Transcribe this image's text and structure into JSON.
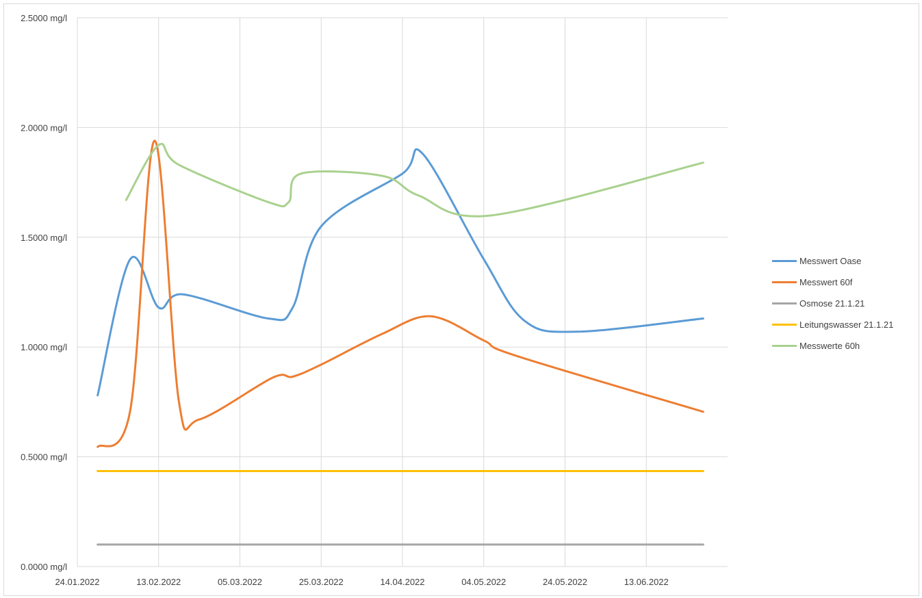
{
  "chart_data": {
    "type": "line",
    "title": "",
    "xlabel": "",
    "ylabel": "",
    "ylim": [
      0,
      2.5
    ],
    "y_ticks": [
      "0.0000 mg/l",
      "0.5000 mg/l",
      "1.0000 mg/l",
      "1.5000 mg/l",
      "2.0000 mg/l",
      "2.5000 mg/l"
    ],
    "y_tick_values": [
      0,
      0.5,
      1.0,
      1.5,
      2.0,
      2.5
    ],
    "xlim": [
      "2022-01-24",
      "2022-07-03"
    ],
    "x_ticks": [
      "24.01.2022",
      "13.02.2022",
      "05.03.2022",
      "25.03.2022",
      "14.04.2022",
      "04.05.2022",
      "24.05.2022",
      "13.06.2022"
    ],
    "x_tick_dates": [
      "2022-01-24",
      "2022-02-13",
      "2022-03-05",
      "2022-03-25",
      "2022-04-14",
      "2022-05-04",
      "2022-05-24",
      "2022-06-13"
    ],
    "grid": true,
    "legend_position": "right",
    "series": [
      {
        "name": "Messwert Oase",
        "color": "#5b9bd5",
        "points": [
          [
            "2022-01-29",
            0.78
          ],
          [
            "2022-02-06",
            1.4
          ],
          [
            "2022-02-13",
            1.18
          ],
          [
            "2022-02-19",
            1.24
          ],
          [
            "2022-03-12",
            1.13
          ],
          [
            "2022-03-18",
            1.18
          ],
          [
            "2022-03-25",
            1.55
          ],
          [
            "2022-04-14",
            1.79
          ],
          [
            "2022-04-19",
            1.88
          ],
          [
            "2022-05-04",
            1.4
          ],
          [
            "2022-05-14",
            1.12
          ],
          [
            "2022-05-27",
            1.07
          ],
          [
            "2022-06-27",
            1.13
          ]
        ]
      },
      {
        "name": "Messwert 60f",
        "color": "#ed7d31",
        "points": [
          [
            "2022-01-29",
            0.545
          ],
          [
            "2022-02-06",
            0.71
          ],
          [
            "2022-02-12",
            1.94
          ],
          [
            "2022-02-18",
            0.75
          ],
          [
            "2022-02-23",
            0.67
          ],
          [
            "2022-03-13",
            0.86
          ],
          [
            "2022-03-18",
            0.865
          ],
          [
            "2022-03-25",
            0.92
          ],
          [
            "2022-04-09",
            1.06
          ],
          [
            "2022-04-21",
            1.14
          ],
          [
            "2022-05-04",
            1.03
          ],
          [
            "2022-05-12",
            0.96
          ],
          [
            "2022-06-27",
            0.705
          ]
        ]
      },
      {
        "name": "Osmose 21.1.21",
        "color": "#a5a5a5",
        "points": [
          [
            "2022-01-29",
            0.1
          ],
          [
            "2022-06-27",
            0.1
          ]
        ]
      },
      {
        "name": "Leitungswasser 21.1.21",
        "color": "#ffc000",
        "points": [
          [
            "2022-01-29",
            0.435
          ],
          [
            "2022-06-27",
            0.435
          ]
        ]
      },
      {
        "name": "Messwerte 60h",
        "color": "#a9d18e",
        "points": [
          [
            "2022-02-05",
            1.67
          ],
          [
            "2022-02-13",
            1.92
          ],
          [
            "2022-02-18",
            1.83
          ],
          [
            "2022-03-12",
            1.66
          ],
          [
            "2022-03-17",
            1.66
          ],
          [
            "2022-03-20",
            1.79
          ],
          [
            "2022-04-09",
            1.78
          ],
          [
            "2022-04-18",
            1.69
          ],
          [
            "2022-05-06",
            1.6
          ],
          [
            "2022-06-27",
            1.84
          ]
        ]
      }
    ]
  }
}
